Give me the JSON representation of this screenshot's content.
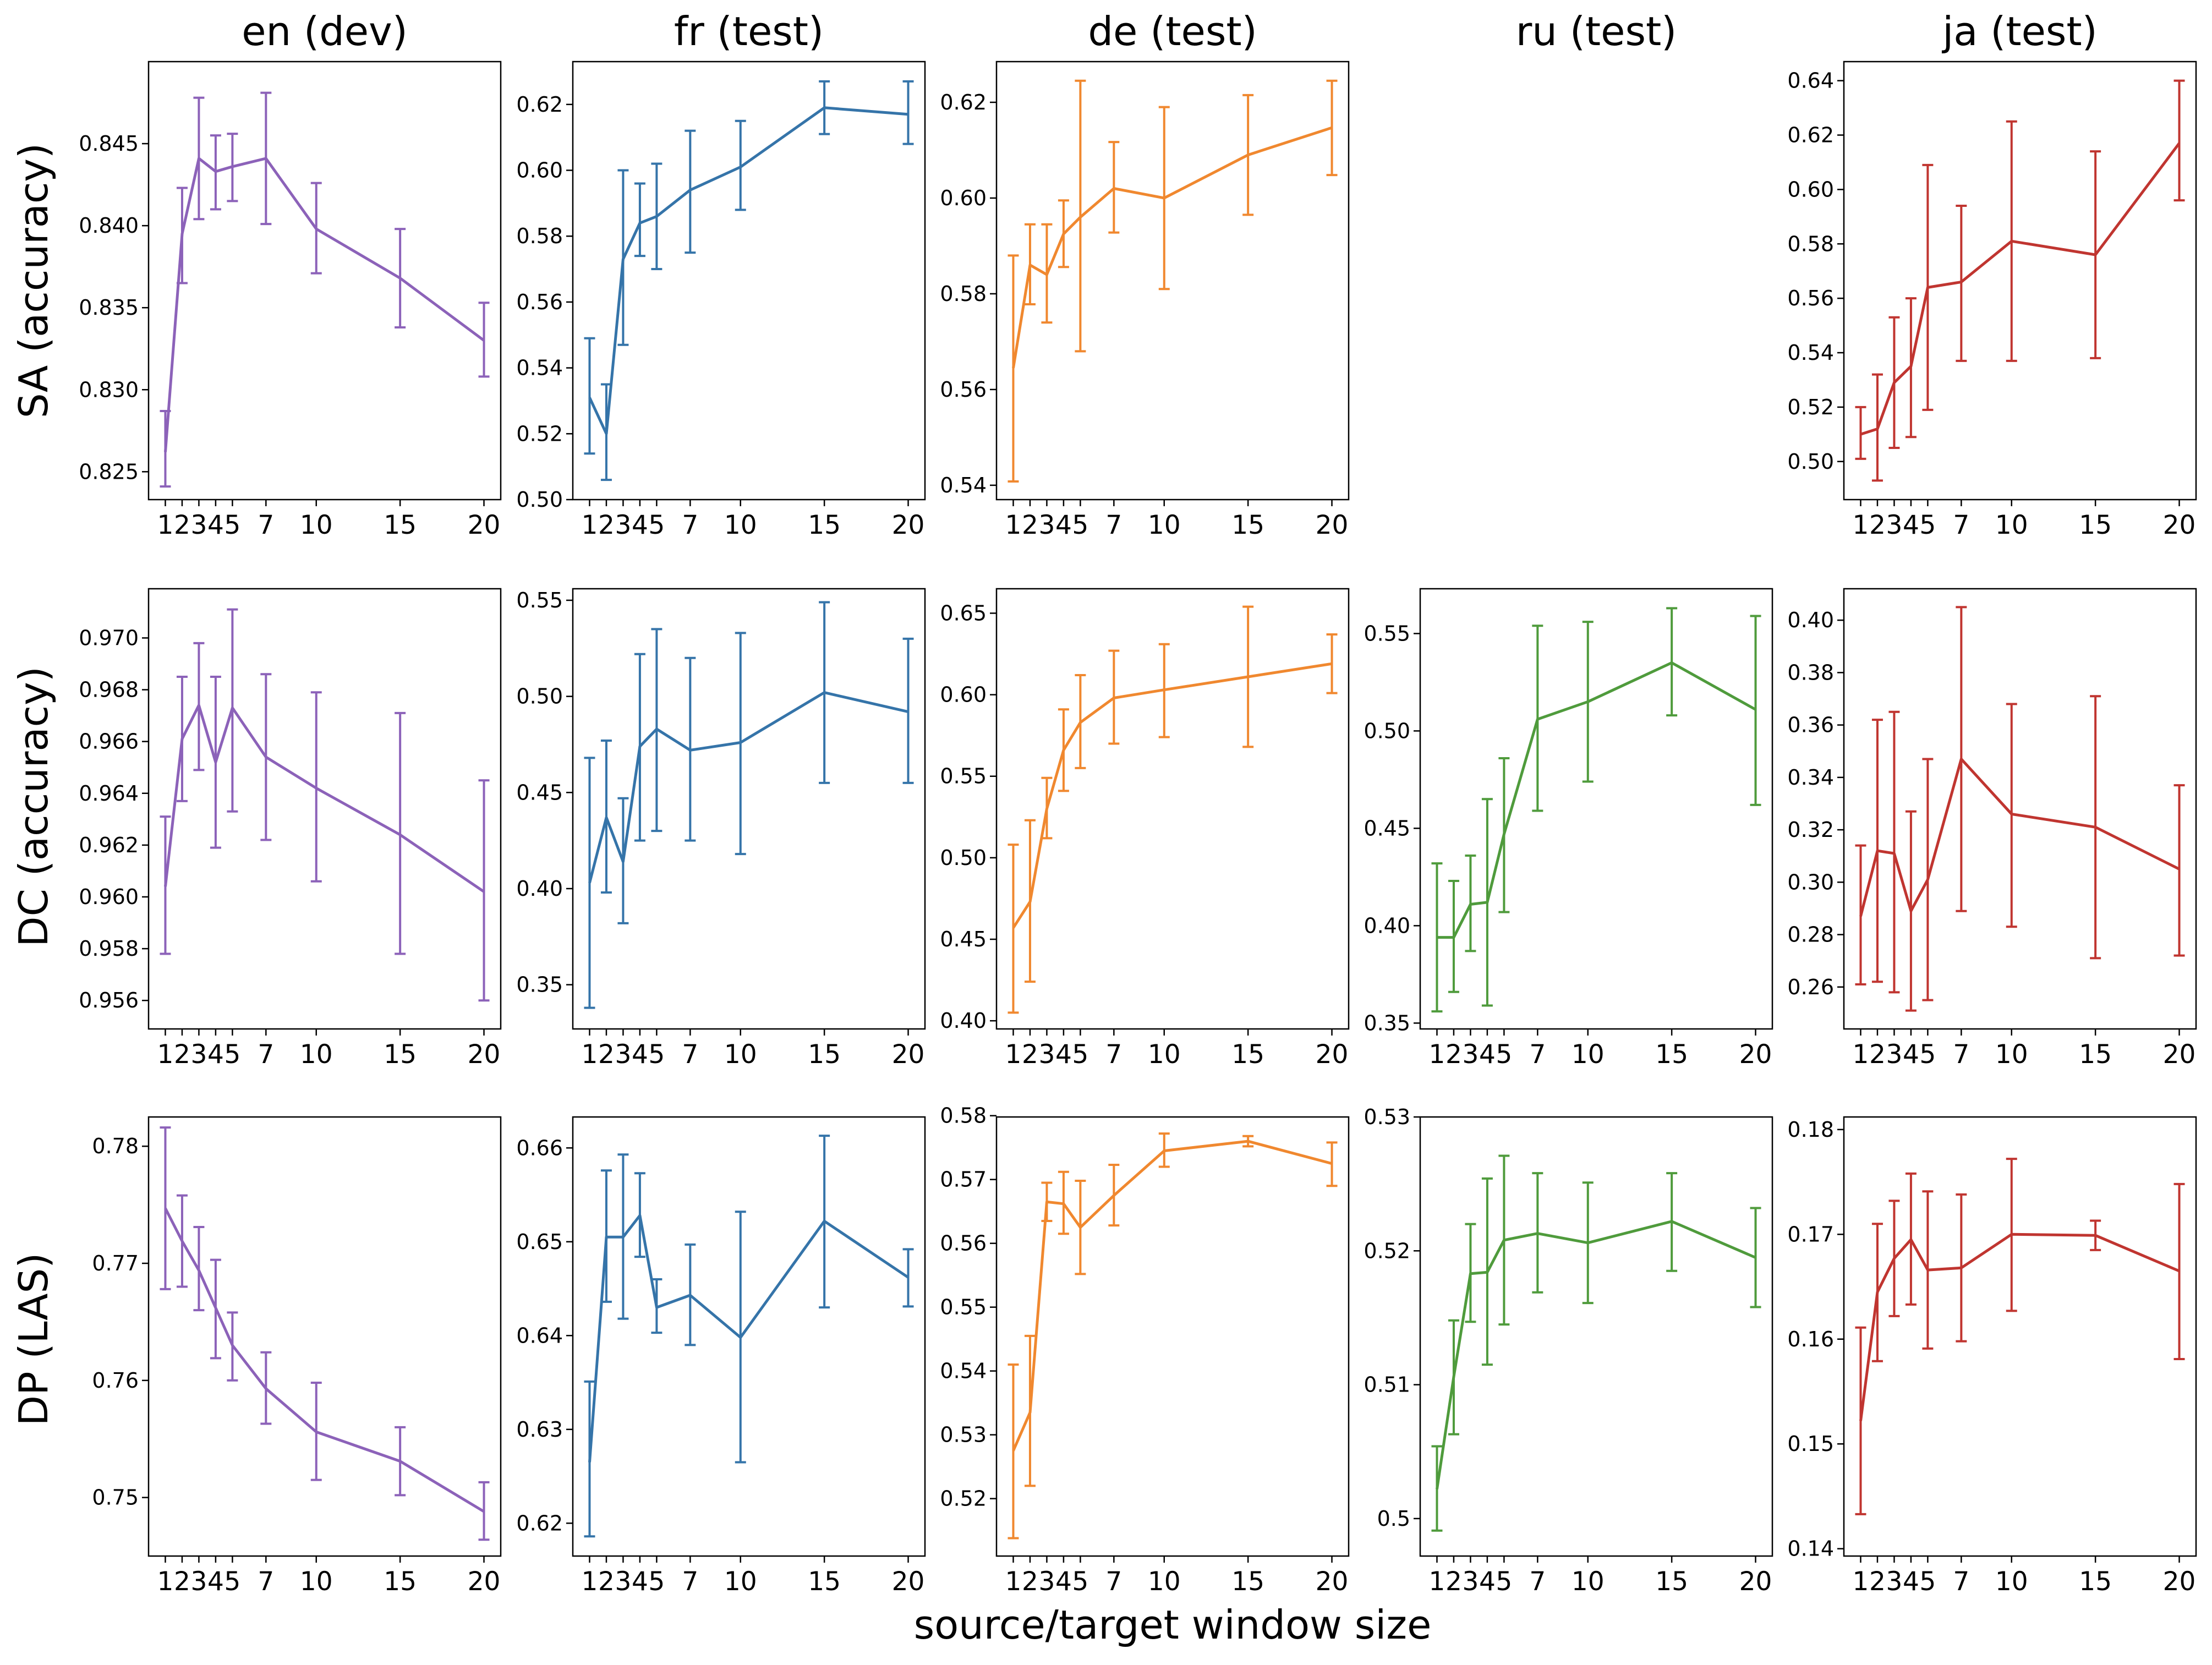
{
  "figure": {
    "xlabel": "source/target window size",
    "columns": [
      "en (dev)",
      "fr (test)",
      "de (test)",
      "ru (test)",
      "ja (test)"
    ],
    "rows": [
      "SA (accuracy)",
      "DC (accuracy)",
      "DP (LAS)"
    ],
    "x_ticks": [
      1,
      2,
      3,
      4,
      5,
      7,
      10,
      15,
      20
    ],
    "x_tick_labels": [
      "1",
      "2",
      "3",
      "4",
      "5",
      "7",
      "10",
      "15",
      "20"
    ],
    "x_range": [
      0,
      21
    ],
    "colors": {
      "en": "#8c62b9",
      "fr": "#3574a9",
      "de": "#f0882f",
      "ru": "#4f9b3c",
      "ja": "#c03530"
    }
  },
  "chart_data": [
    {
      "type": "line",
      "row": "SA (accuracy)",
      "column": "en (dev)",
      "color_key": "en",
      "x": [
        1,
        2,
        3,
        4,
        5,
        7,
        10,
        15,
        20
      ],
      "y": [
        0.8262,
        0.8395,
        0.8441,
        0.8433,
        0.8436,
        0.8441,
        0.8398,
        0.8368,
        0.833
      ],
      "err_low": [
        0.8241,
        0.8365,
        0.8404,
        0.841,
        0.8415,
        0.8401,
        0.8371,
        0.8338,
        0.8308
      ],
      "err_high": [
        0.8287,
        0.8423,
        0.8478,
        0.8455,
        0.8456,
        0.8481,
        0.8426,
        0.8398,
        0.8353
      ],
      "ylim": [
        0.8233,
        0.85
      ],
      "yticks": [
        0.825,
        0.83,
        0.835,
        0.84,
        0.845
      ],
      "ytick_labels": [
        "0.825",
        "0.830",
        "0.835",
        "0.840",
        "0.845"
      ]
    },
    {
      "type": "line",
      "row": "SA (accuracy)",
      "column": "fr (test)",
      "color_key": "fr",
      "x": [
        1,
        2,
        3,
        4,
        5,
        7,
        10,
        15,
        20
      ],
      "y": [
        0.531,
        0.52,
        0.573,
        0.584,
        0.586,
        0.594,
        0.601,
        0.619,
        0.617
      ],
      "err_low": [
        0.514,
        0.506,
        0.547,
        0.574,
        0.57,
        0.575,
        0.588,
        0.611,
        0.608
      ],
      "err_high": [
        0.549,
        0.535,
        0.6,
        0.596,
        0.602,
        0.612,
        0.615,
        0.627,
        0.627
      ],
      "ylim": [
        0.5,
        0.633
      ],
      "yticks": [
        0.5,
        0.52,
        0.54,
        0.56,
        0.58,
        0.6,
        0.62
      ],
      "ytick_labels": [
        "0.50",
        "0.52",
        "0.54",
        "0.56",
        "0.58",
        "0.60",
        "0.62"
      ]
    },
    {
      "type": "line",
      "row": "SA (accuracy)",
      "column": "de (test)",
      "color_key": "de",
      "x": [
        1,
        2,
        3,
        4,
        5,
        7,
        10,
        15,
        20
      ],
      "y": [
        0.5645,
        0.586,
        0.584,
        0.5925,
        0.596,
        0.602,
        0.6,
        0.609,
        0.6147
      ],
      "err_low": [
        0.5408,
        0.5778,
        0.574,
        0.5856,
        0.568,
        0.5928,
        0.581,
        0.5965,
        0.6048
      ],
      "err_high": [
        0.588,
        0.5945,
        0.5945,
        0.5995,
        0.6245,
        0.6117,
        0.619,
        0.6215,
        0.6245
      ],
      "ylim": [
        0.537,
        0.6285
      ],
      "yticks": [
        0.54,
        0.56,
        0.58,
        0.6,
        0.62
      ],
      "ytick_labels": [
        "0.54",
        "0.56",
        "0.58",
        "0.60",
        "0.62"
      ]
    },
    {
      "type": "line",
      "row": "SA (accuracy)",
      "column": "ru (test)",
      "color_key": "ru",
      "empty": true
    },
    {
      "type": "line",
      "row": "SA (accuracy)",
      "column": "ja (test)",
      "color_key": "ja",
      "x": [
        1,
        2,
        3,
        4,
        5,
        7,
        10,
        15,
        20
      ],
      "y": [
        0.51,
        0.512,
        0.529,
        0.535,
        0.564,
        0.566,
        0.581,
        0.576,
        0.617
      ],
      "err_low": [
        0.501,
        0.493,
        0.505,
        0.509,
        0.519,
        0.537,
        0.537,
        0.538,
        0.596
      ],
      "err_high": [
        0.52,
        0.532,
        0.553,
        0.56,
        0.609,
        0.594,
        0.625,
        0.614,
        0.64
      ],
      "ylim": [
        0.486,
        0.647
      ],
      "yticks": [
        0.5,
        0.52,
        0.54,
        0.56,
        0.58,
        0.6,
        0.62,
        0.64
      ],
      "ytick_labels": [
        "0.50",
        "0.52",
        "0.54",
        "0.56",
        "0.58",
        "0.60",
        "0.62",
        "0.64"
      ]
    },
    {
      "type": "line",
      "row": "DC (accuracy)",
      "column": "en (dev)",
      "color_key": "en",
      "x": [
        1,
        2,
        3,
        4,
        5,
        7,
        10,
        15,
        20
      ],
      "y": [
        0.9604,
        0.9661,
        0.9674,
        0.9652,
        0.9673,
        0.9654,
        0.9642,
        0.9624,
        0.9602
      ],
      "err_low": [
        0.9578,
        0.9637,
        0.9649,
        0.9619,
        0.9633,
        0.9622,
        0.9606,
        0.9578,
        0.956
      ],
      "err_high": [
        0.9631,
        0.9685,
        0.9698,
        0.9685,
        0.9711,
        0.9686,
        0.9679,
        0.9671,
        0.9645
      ],
      "ylim": [
        0.9549,
        0.9719
      ],
      "yticks": [
        0.956,
        0.958,
        0.96,
        0.962,
        0.964,
        0.966,
        0.968,
        0.97
      ],
      "ytick_labels": [
        "0.956",
        "0.958",
        "0.960",
        "0.962",
        "0.964",
        "0.966",
        "0.968",
        "0.970"
      ]
    },
    {
      "type": "line",
      "row": "DC (accuracy)",
      "column": "fr (test)",
      "color_key": "fr",
      "x": [
        1,
        2,
        3,
        4,
        5,
        7,
        10,
        15,
        20
      ],
      "y": [
        0.403,
        0.437,
        0.414,
        0.474,
        0.483,
        0.472,
        0.476,
        0.502,
        0.492
      ],
      "err_low": [
        0.338,
        0.398,
        0.382,
        0.425,
        0.43,
        0.425,
        0.418,
        0.455,
        0.455
      ],
      "err_high": [
        0.468,
        0.477,
        0.447,
        0.522,
        0.535,
        0.52,
        0.533,
        0.549,
        0.53
      ],
      "ylim": [
        0.327,
        0.556
      ],
      "yticks": [
        0.35,
        0.4,
        0.45,
        0.5,
        0.55
      ],
      "ytick_labels": [
        "0.35",
        "0.40",
        "0.45",
        "0.50",
        "0.55"
      ]
    },
    {
      "type": "line",
      "row": "DC (accuracy)",
      "column": "de (test)",
      "color_key": "de",
      "x": [
        1,
        2,
        3,
        4,
        5,
        7,
        10,
        15,
        20
      ],
      "y": [
        0.457,
        0.473,
        0.53,
        0.566,
        0.583,
        0.598,
        0.603,
        0.611,
        0.619
      ],
      "err_low": [
        0.405,
        0.424,
        0.512,
        0.541,
        0.555,
        0.57,
        0.574,
        0.568,
        0.601
      ],
      "err_high": [
        0.508,
        0.523,
        0.549,
        0.591,
        0.612,
        0.627,
        0.631,
        0.654,
        0.637
      ],
      "ylim": [
        0.395,
        0.665
      ],
      "yticks": [
        0.4,
        0.45,
        0.5,
        0.55,
        0.6,
        0.65
      ],
      "ytick_labels": [
        "0.40",
        "0.45",
        "0.50",
        "0.55",
        "0.60",
        "0.65"
      ]
    },
    {
      "type": "line",
      "row": "DC (accuracy)",
      "column": "ru (test)",
      "color_key": "ru",
      "x": [
        1,
        2,
        3,
        4,
        5,
        7,
        10,
        15,
        20
      ],
      "y": [
        0.394,
        0.394,
        0.411,
        0.412,
        0.447,
        0.506,
        0.515,
        0.535,
        0.511
      ],
      "err_low": [
        0.356,
        0.366,
        0.387,
        0.359,
        0.407,
        0.459,
        0.474,
        0.508,
        0.462
      ],
      "err_high": [
        0.432,
        0.423,
        0.436,
        0.465,
        0.486,
        0.554,
        0.556,
        0.563,
        0.559
      ],
      "ylim": [
        0.347,
        0.573
      ],
      "yticks": [
        0.35,
        0.4,
        0.45,
        0.5,
        0.55
      ],
      "ytick_labels": [
        "0.35",
        "0.40",
        "0.45",
        "0.50",
        "0.55"
      ]
    },
    {
      "type": "line",
      "row": "DC (accuracy)",
      "column": "ja (test)",
      "color_key": "ja",
      "x": [
        1,
        2,
        3,
        4,
        5,
        7,
        10,
        15,
        20
      ],
      "y": [
        0.287,
        0.312,
        0.311,
        0.289,
        0.301,
        0.347,
        0.326,
        0.321,
        0.305
      ],
      "err_low": [
        0.261,
        0.262,
        0.258,
        0.251,
        0.255,
        0.289,
        0.283,
        0.271,
        0.272
      ],
      "err_high": [
        0.314,
        0.362,
        0.365,
        0.327,
        0.347,
        0.405,
        0.368,
        0.371,
        0.337
      ],
      "ylim": [
        0.244,
        0.412
      ],
      "yticks": [
        0.26,
        0.28,
        0.3,
        0.32,
        0.34,
        0.36,
        0.38,
        0.4
      ],
      "ytick_labels": [
        "0.26",
        "0.28",
        "0.30",
        "0.32",
        "0.34",
        "0.36",
        "0.38",
        "0.40"
      ]
    },
    {
      "type": "line",
      "row": "DP (LAS)",
      "column": "en (dev)",
      "color_key": "en",
      "x": [
        1,
        2,
        3,
        4,
        5,
        7,
        10,
        15,
        20
      ],
      "y": [
        0.7747,
        0.7719,
        0.7694,
        0.7662,
        0.763,
        0.7593,
        0.7556,
        0.7531,
        0.7488
      ],
      "err_low": [
        0.7678,
        0.768,
        0.766,
        0.7619,
        0.76,
        0.7563,
        0.7515,
        0.7502,
        0.7464
      ],
      "err_high": [
        0.7816,
        0.7758,
        0.7731,
        0.7703,
        0.7658,
        0.7624,
        0.7598,
        0.756,
        0.7513
      ],
      "ylim": [
        0.745,
        0.7825
      ],
      "yticks": [
        0.75,
        0.76,
        0.77,
        0.78
      ],
      "ytick_labels": [
        "0.75",
        "0.76",
        "0.77",
        "0.78"
      ]
    },
    {
      "type": "line",
      "row": "DP (LAS)",
      "column": "fr (test)",
      "color_key": "fr",
      "x": [
        1,
        2,
        3,
        4,
        5,
        7,
        10,
        15,
        20
      ],
      "y": [
        0.6265,
        0.6505,
        0.6505,
        0.6528,
        0.643,
        0.6443,
        0.6398,
        0.6522,
        0.6462
      ],
      "err_low": [
        0.6186,
        0.6436,
        0.6418,
        0.6484,
        0.6403,
        0.639,
        0.6265,
        0.643,
        0.6431
      ],
      "err_high": [
        0.6351,
        0.6576,
        0.6593,
        0.6573,
        0.646,
        0.6497,
        0.6532,
        0.6613,
        0.6492
      ],
      "ylim": [
        0.6165,
        0.6633
      ],
      "yticks": [
        0.62,
        0.63,
        0.64,
        0.65,
        0.66
      ],
      "ytick_labels": [
        "0.62",
        "0.63",
        "0.64",
        "0.65",
        "0.66"
      ]
    },
    {
      "type": "line",
      "row": "DP (LAS)",
      "column": "de (test)",
      "color_key": "de",
      "x": [
        1,
        2,
        3,
        4,
        5,
        7,
        10,
        15,
        20
      ],
      "y": [
        0.5275,
        0.5335,
        0.5665,
        0.5662,
        0.5625,
        0.5675,
        0.5745,
        0.576,
        0.5725
      ],
      "err_low": [
        0.5138,
        0.522,
        0.5635,
        0.5615,
        0.5552,
        0.5628,
        0.572,
        0.5752,
        0.569
      ],
      "err_high": [
        0.541,
        0.5455,
        0.5695,
        0.5712,
        0.5698,
        0.5723,
        0.5772,
        0.5768,
        0.5758
      ],
      "ylim": [
        0.511,
        0.5798
      ],
      "yticks": [
        0.52,
        0.53,
        0.54,
        0.55,
        0.56,
        0.57,
        0.58
      ],
      "ytick_labels": [
        "0.52",
        "0.53",
        "0.54",
        "0.55",
        "0.56",
        "0.57",
        "0.58"
      ]
    },
    {
      "type": "line",
      "row": "DP (LAS)",
      "column": "ru (test)",
      "color_key": "ru",
      "x": [
        1,
        2,
        3,
        4,
        5,
        7,
        10,
        15,
        20
      ],
      "y": [
        0.5022,
        0.5106,
        0.5183,
        0.5184,
        0.5208,
        0.5213,
        0.5206,
        0.5222,
        0.5195
      ],
      "err_low": [
        0.4991,
        0.5063,
        0.5147,
        0.5115,
        0.5145,
        0.5169,
        0.5161,
        0.5185,
        0.5158
      ],
      "err_high": [
        0.5054,
        0.5148,
        0.522,
        0.5254,
        0.5271,
        0.5258,
        0.5251,
        0.5258,
        0.5232
      ],
      "ylim": [
        0.4972,
        0.53
      ],
      "yticks": [
        0.5,
        0.51,
        0.52,
        0.53
      ],
      "ytick_labels": [
        "0.5",
        "0.51",
        "0.52",
        "0.53"
      ]
    },
    {
      "type": "line",
      "row": "DP (LAS)",
      "column": "ja (test)",
      "color_key": "ja",
      "x": [
        1,
        2,
        3,
        4,
        5,
        7,
        10,
        15,
        20
      ],
      "y": [
        0.1522,
        0.1645,
        0.1677,
        0.1695,
        0.1666,
        0.1668,
        0.17,
        0.1699,
        0.1665
      ],
      "err_low": [
        0.1433,
        0.1579,
        0.1622,
        0.1633,
        0.1591,
        0.1598,
        0.1627,
        0.1685,
        0.1581
      ],
      "err_high": [
        0.1611,
        0.171,
        0.1732,
        0.1758,
        0.1741,
        0.1738,
        0.1772,
        0.1713,
        0.1748
      ],
      "ylim": [
        0.1393,
        0.1812
      ],
      "yticks": [
        0.14,
        0.15,
        0.16,
        0.17,
        0.18
      ],
      "ytick_labels": [
        "0.14",
        "0.15",
        "0.16",
        "0.17",
        "0.18"
      ]
    }
  ]
}
